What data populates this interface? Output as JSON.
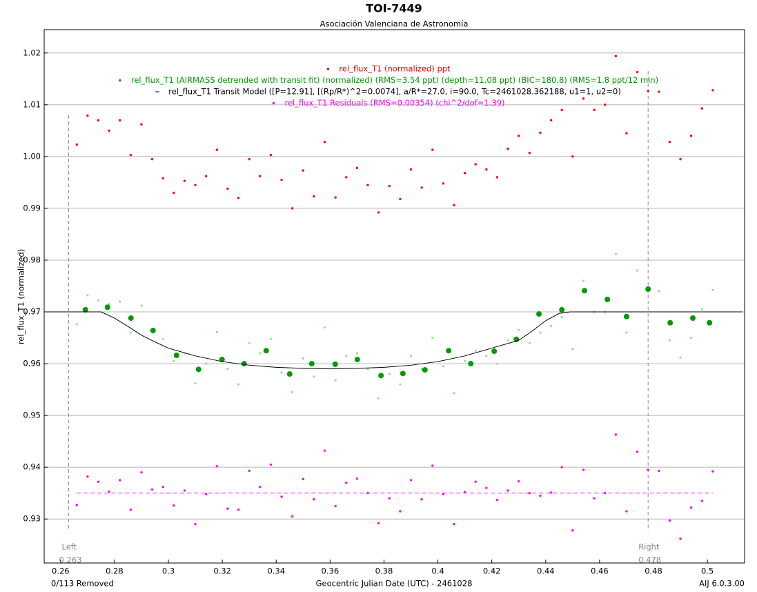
{
  "chart_data": {
    "type": "scatter",
    "title": "TOI-7449",
    "subtitle": "Asociación Valenciana de Astronomía",
    "x_label": "Geocentric Julian Date (UTC) - 2461028",
    "y_label": "rel_flux_T1 (normalized)",
    "footer_left": "0/113 Removed",
    "footer_right": "AIJ 6.0.3.00",
    "xlim": [
      0.2539,
      0.5138
    ],
    "ylim": [
      0.9215,
      1.0245
    ],
    "xticks": [
      0.26,
      0.28,
      0.3,
      0.32,
      0.34,
      0.36,
      0.38,
      0.4,
      0.42,
      0.44,
      0.46,
      0.48,
      0.5
    ],
    "yticks": [
      1.02,
      1.01,
      {
        "value": 1,
        "label": "1.00"
      },
      0.99,
      0.98,
      0.97,
      0.96,
      0.95,
      0.94,
      0.93
    ],
    "grid": true,
    "boundaries": [
      {
        "label": "Left",
        "value": 0.263
      },
      {
        "label": "Right",
        "value": 0.478
      }
    ],
    "series": [
      {
        "name": "rel_flux_T1 (normalized) ppt",
        "color": "#ff0000",
        "style": "points",
        "size": 1.7,
        "x": [
          0.266,
          0.27,
          0.274,
          0.278,
          0.282,
          0.286,
          0.29,
          0.294,
          0.298,
          0.302,
          0.306,
          0.31,
          0.314,
          0.318,
          0.322,
          0.326,
          0.33,
          0.334,
          0.338,
          0.342,
          0.346,
          0.35,
          0.354,
          0.358,
          0.362,
          0.366,
          0.37,
          0.374,
          0.378,
          0.382,
          0.386,
          0.39,
          0.394,
          0.398,
          0.402,
          0.406,
          0.41,
          0.414,
          0.418,
          0.422,
          0.426,
          0.43,
          0.434,
          0.438,
          0.442,
          0.446,
          0.45,
          0.454,
          0.458,
          0.462,
          0.466,
          0.47,
          0.474,
          0.478,
          0.482,
          0.486,
          0.49,
          0.494,
          0.498,
          0.502
        ],
        "values": [
          1.0023,
          1.0079,
          1.007,
          1.005,
          1.007,
          1.0003,
          1.0062,
          0.9995,
          0.9958,
          0.993,
          0.9953,
          0.9945,
          0.9962,
          1.0013,
          0.9938,
          0.992,
          0.9995,
          0.9962,
          1.0003,
          0.9955,
          0.99,
          0.9973,
          0.9923,
          1.0028,
          0.9921,
          0.996,
          0.9978,
          0.9945,
          0.9892,
          0.9943,
          0.9918,
          0.9975,
          0.994,
          1.0013,
          0.9948,
          0.9906,
          0.9968,
          0.9985,
          0.9975,
          0.996,
          1.0015,
          1.004,
          1.0007,
          1.0046,
          1.007,
          1.009,
          1.0,
          1.0112,
          1.009,
          1.01,
          1.0194,
          1.0045,
          1.0163,
          1.0127,
          1.0125,
          1.0028,
          0.9995,
          1.004,
          1.0093,
          1.0128
        ]
      },
      {
        "color": "#90e090",
        "style": "points",
        "size": 1.6,
        "x": [
          0.266,
          0.27,
          0.274,
          0.278,
          0.282,
          0.286,
          0.29,
          0.294,
          0.298,
          0.302,
          0.306,
          0.31,
          0.314,
          0.318,
          0.322,
          0.326,
          0.33,
          0.334,
          0.338,
          0.342,
          0.346,
          0.35,
          0.354,
          0.358,
          0.362,
          0.366,
          0.37,
          0.374,
          0.378,
          0.382,
          0.386,
          0.39,
          0.394,
          0.398,
          0.402,
          0.406,
          0.41,
          0.414,
          0.418,
          0.422,
          0.426,
          0.43,
          0.434,
          0.438,
          0.442,
          0.446,
          0.45,
          0.454,
          0.458,
          0.462,
          0.466,
          0.47,
          0.474,
          0.478,
          0.482,
          0.486,
          0.49,
          0.494,
          0.498,
          0.502
        ],
        "values": [
          0.9676,
          0.9732,
          0.9722,
          0.9715,
          0.972,
          0.966,
          0.9712,
          0.9665,
          0.9648,
          0.9605,
          0.962,
          0.9562,
          0.96,
          0.9661,
          0.959,
          0.956,
          0.964,
          0.962,
          0.9648,
          0.9583,
          0.9545,
          0.961,
          0.9575,
          0.967,
          0.9568,
          0.9615,
          0.962,
          0.959,
          0.9533,
          0.958,
          0.956,
          0.9615,
          0.959,
          0.965,
          0.9595,
          0.9543,
          0.9605,
          0.9625,
          0.9615,
          0.96,
          0.9645,
          0.9665,
          0.964,
          0.966,
          0.9673,
          0.969,
          0.9628,
          0.976,
          0.97,
          0.97,
          0.9812,
          0.966,
          0.978,
          0.974,
          0.974,
          0.9645,
          0.9612,
          0.965,
          0.9705,
          0.9742
        ]
      },
      {
        "name": "rel_flux_T1 (AIRMASS detrended with transit fit) (normalized) (RMS=3.54 ppt) (depth=11.08 ppt) (BIC=180.8) (RMS=1.8 ppt/12 min)",
        "color": "#009900",
        "style": "points",
        "size": 4,
        "x": [
          0.2692,
          0.2774,
          0.2861,
          0.2943,
          0.303,
          0.3112,
          0.3199,
          0.3281,
          0.3363,
          0.345,
          0.3532,
          0.3619,
          0.3701,
          0.3789,
          0.387,
          0.3952,
          0.404,
          0.4122,
          0.4209,
          0.4291,
          0.4375,
          0.446,
          0.4544,
          0.4629,
          0.47,
          0.478,
          0.4862,
          0.4946,
          0.5008
        ],
        "values": [
          0.9704,
          0.9709,
          0.9688,
          0.9664,
          0.9616,
          0.9589,
          0.9608,
          0.96,
          0.9625,
          0.958,
          0.96,
          0.9599,
          0.9608,
          0.9577,
          0.9581,
          0.9588,
          0.9625,
          0.96,
          0.9624,
          0.9647,
          0.9696,
          0.9704,
          0.9741,
          0.9724,
          0.9691,
          0.9744,
          0.9679,
          0.9688,
          0.9679
        ]
      },
      {
        "name": "rel_flux_T1 Transit Model ([P=12.91], [(Rp/R*)^2=0.0074], a/R*=27.0, i=90.0, Tc=2461028.362188, u1=1, u2=0)",
        "color": "#000000",
        "style": "line",
        "x": [
          0.254,
          0.275,
          0.28,
          0.285,
          0.29,
          0.295,
          0.3,
          0.31,
          0.32,
          0.33,
          0.34,
          0.35,
          0.36,
          0.37,
          0.38,
          0.39,
          0.4,
          0.41,
          0.42,
          0.43,
          0.435,
          0.44,
          0.445,
          0.449,
          0.513
        ],
        "values": [
          0.97,
          0.97,
          0.9688,
          0.9672,
          0.9655,
          0.9642,
          0.963,
          0.9615,
          0.9604,
          0.9597,
          0.9593,
          0.9591,
          0.959,
          0.9591,
          0.9593,
          0.9597,
          0.9604,
          0.9615,
          0.963,
          0.9645,
          0.9663,
          0.9683,
          0.9697,
          0.97,
          0.97
        ]
      },
      {
        "name": "rel_flux_T1 Residuals (RMS=0.00354) (chi^2/dof=1.39)",
        "color": "#ff00ff",
        "style": "points",
        "size": 1.7,
        "x": [
          0.266,
          0.27,
          0.274,
          0.278,
          0.282,
          0.286,
          0.29,
          0.294,
          0.298,
          0.302,
          0.306,
          0.31,
          0.314,
          0.318,
          0.322,
          0.326,
          0.33,
          0.334,
          0.338,
          0.342,
          0.346,
          0.35,
          0.354,
          0.358,
          0.362,
          0.366,
          0.37,
          0.374,
          0.378,
          0.382,
          0.386,
          0.39,
          0.394,
          0.398,
          0.402,
          0.406,
          0.41,
          0.414,
          0.418,
          0.422,
          0.426,
          0.43,
          0.434,
          0.438,
          0.442,
          0.446,
          0.45,
          0.454,
          0.458,
          0.462,
          0.466,
          0.47,
          0.474,
          0.478,
          0.482,
          0.486,
          0.49,
          0.494,
          0.498,
          0.502
        ],
        "values": [
          0.9327,
          0.9382,
          0.9372,
          0.9353,
          0.9375,
          0.9318,
          0.939,
          0.9357,
          0.9362,
          0.9326,
          0.9355,
          0.929,
          0.9348,
          0.9402,
          0.932,
          0.9318,
          0.9393,
          0.9362,
          0.9405,
          0.9343,
          0.9305,
          0.9377,
          0.9338,
          0.9432,
          0.9325,
          0.937,
          0.9378,
          0.935,
          0.9292,
          0.934,
          0.9315,
          0.9375,
          0.9338,
          0.9403,
          0.9348,
          0.929,
          0.9352,
          0.9372,
          0.936,
          0.9337,
          0.9355,
          0.9373,
          0.935,
          0.9345,
          0.9351,
          0.94,
          0.9278,
          0.9395,
          0.934,
          0.935,
          0.9463,
          0.9315,
          0.943,
          0.9395,
          0.9393,
          0.9297,
          0.9262,
          0.9322,
          0.9335,
          0.9392
        ]
      },
      {
        "color": "#ff00ff",
        "style": "dashed",
        "x": [
          0.266,
          0.502
        ],
        "values": [
          0.935,
          0.935
        ]
      }
    ]
  }
}
